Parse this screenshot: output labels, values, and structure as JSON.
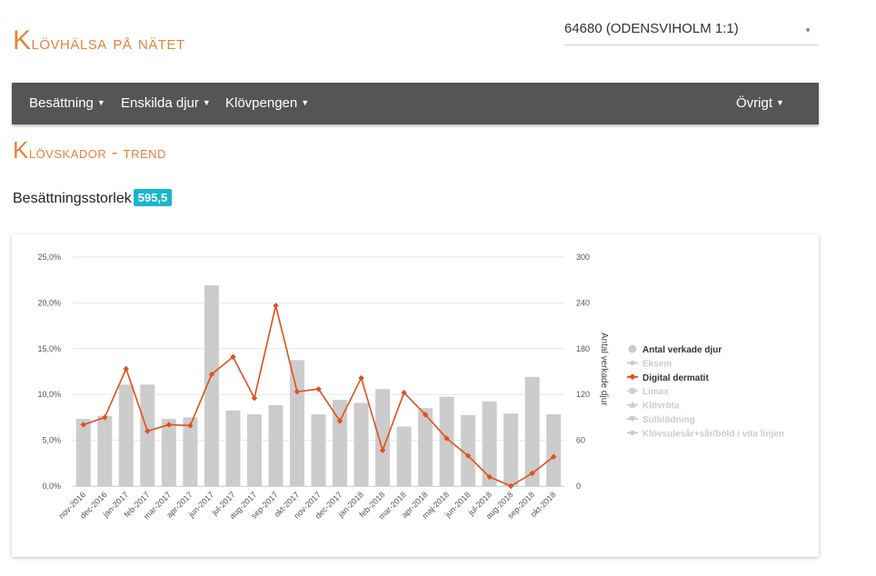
{
  "header": {
    "logo_first": "K",
    "logo_rest": "lövhälsa på nätet",
    "herd_select": {
      "value": "64680 (ODENSVIHOLM 1:1)"
    }
  },
  "nav": {
    "items": [
      {
        "label": "Besättning"
      },
      {
        "label": "Enskilda djur"
      },
      {
        "label": "Klövpengen"
      }
    ],
    "right_item": {
      "label": "Övrigt"
    }
  },
  "page": {
    "title_first": "K",
    "title_rest": "lövskador - trend",
    "herd_size_label": "Besättningsstorlek",
    "herd_size_value": "595,5"
  },
  "chart_data": {
    "type": "bar",
    "categories": [
      "nov-2016",
      "dec-2016",
      "jan-2017",
      "feb-2017",
      "mar-2017",
      "apr-2017",
      "jun-2017",
      "jul-2017",
      "aug-2017",
      "sep-2017",
      "okt-2017",
      "nov-2017",
      "dec-2017",
      "jan-2018",
      "feb-2018",
      "mar-2018",
      "apr-2018",
      "maj-2018",
      "jun-2018",
      "jul-2018",
      "aug-2018",
      "sep-2018",
      "okt-2018"
    ],
    "series": [
      {
        "name": "Antal verkade djur",
        "type": "bar",
        "axis": "right",
        "color": "#cccccc",
        "values": [
          88,
          92,
          133,
          133,
          88,
          90,
          263,
          99,
          94,
          106,
          165,
          94,
          113,
          109,
          127,
          78,
          102,
          117,
          93,
          111,
          95,
          143,
          94
        ]
      },
      {
        "name": "Digital dermatit",
        "type": "line",
        "axis": "left",
        "color": "#e0501e",
        "values": [
          6.7,
          7.5,
          12.8,
          6.0,
          6.7,
          6.6,
          12.2,
          14.1,
          9.6,
          19.7,
          10.3,
          10.6,
          7.1,
          11.8,
          3.9,
          10.2,
          7.8,
          5.2,
          3.3,
          1.0,
          0.0,
          1.4,
          3.2
        ]
      }
    ],
    "legend": {
      "placement": "right",
      "entries": [
        {
          "label": "Antal verkade djur",
          "active": true,
          "marker": "circle"
        },
        {
          "label": "Eksem",
          "active": false,
          "marker": "line"
        },
        {
          "label": "Digital dermatit",
          "active": true,
          "marker": "line-diamond"
        },
        {
          "label": "Limax",
          "active": false,
          "marker": "square"
        },
        {
          "label": "Klövröta",
          "active": false,
          "marker": "triangle"
        },
        {
          "label": "Sulblödning",
          "active": false,
          "marker": "triangle-down"
        },
        {
          "label": "Klövsulesår+sår/böld i vita linjen",
          "active": false,
          "marker": "line"
        }
      ]
    },
    "y_left": {
      "ticks": [
        "0,0%",
        "5,0%",
        "10,0%",
        "15,0%",
        "20,0%",
        "25,0%"
      ],
      "min": 0,
      "max": 25
    },
    "y_right": {
      "label": "Antal verkade djur",
      "ticks": [
        "0",
        "60",
        "120",
        "180",
        "240",
        "300"
      ],
      "min": 0,
      "max": 300
    },
    "grid": true
  }
}
